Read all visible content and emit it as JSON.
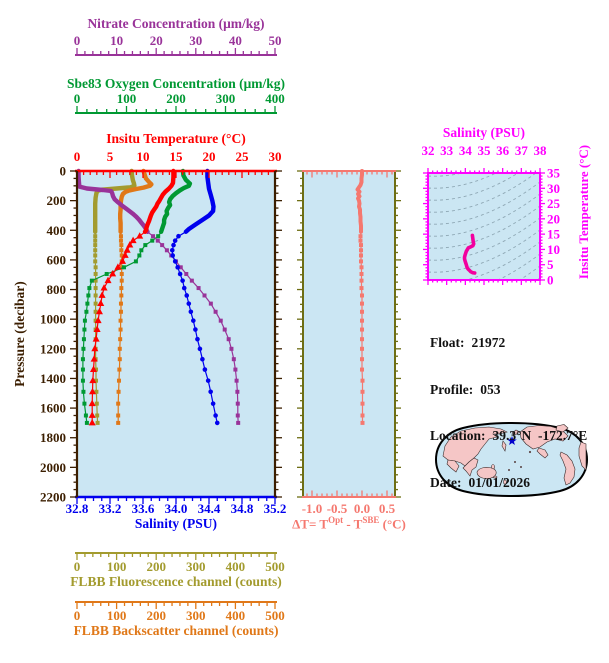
{
  "colors": {
    "background": "#ffffff",
    "panel_bg": "#cbe6f3",
    "contour": "#8fa8b5",
    "nitrate": "#993399",
    "oxygen": "#009933",
    "temperature": "#ff0000",
    "salinity": "#0000ee",
    "pressure": "#3b1e00",
    "fluorescence": "#a39b2e",
    "backscatter": "#e07818",
    "delta": "#f5786f",
    "delta_frame": "#6e6e14",
    "ts_axis": "#ff00ff",
    "ts_curve": "#f2009e",
    "map_land": "#f5c6c6",
    "map_sea": "#cbe6f3",
    "map_outline": "#000000",
    "map_star": "#0000cc",
    "info_text": "#111111"
  },
  "titles": {
    "nitrate": "Nitrate Concentration (μm/kg)",
    "oxygen": "Sbe83 Oxygen Concentration (μm/kg)",
    "temperature": "Insitu Temperature (°C)",
    "salinity": "Salinity (PSU)",
    "pressure": "Pressure (decibar)",
    "fluorescence": "FLBB Fluorescence channel (counts)",
    "backscatter": "FLBB Backscatter channel (counts)",
    "ts_salinity": "Salinity (PSU)",
    "ts_temperature": "Insitu Temperature (°C)",
    "delta_pre": "ΔT= T",
    "delta_sup1": "Opt",
    "delta_mid": " - T",
    "delta_sup2": "SBE",
    "delta_post": " (°C)"
  },
  "float_info": {
    "rows": [
      {
        "label": "Float:",
        "value": "21972"
      },
      {
        "label": "Profile:",
        "value": "053"
      },
      {
        "label": "Location:",
        "value": "39.3°N  -172.7°E"
      },
      {
        "label": "Date:",
        "value": "01/01/2026"
      }
    ]
  },
  "chart_data": {
    "type": "line",
    "axes": {
      "temperature": {
        "min": 0,
        "max": 30,
        "ticks": [
          0,
          5,
          10,
          15,
          20,
          25,
          30
        ],
        "minor_step": 1
      },
      "nitrate": {
        "min": 0,
        "max": 50,
        "ticks": [
          0,
          10,
          20,
          30,
          40,
          50
        ],
        "minor_step": 2
      },
      "oxygen": {
        "min": 0,
        "max": 400,
        "ticks": [
          0,
          100,
          200,
          300,
          400
        ],
        "minor_step": 20
      },
      "salinity": {
        "min": 32.8,
        "max": 35.2,
        "ticks": [
          32.8,
          33.2,
          33.6,
          34,
          34.4,
          34.8,
          35.2
        ],
        "tick_labels": [
          "32.8",
          "33.2",
          "33.6",
          "34.0",
          "34.4",
          "34.8",
          "35.2"
        ],
        "minor_step": 0.1
      },
      "fluorescence": {
        "min": 0,
        "max": 500,
        "ticks": [
          0,
          100,
          200,
          300,
          400,
          500
        ],
        "minor_step": 20
      },
      "backscatter": {
        "min": 0,
        "max": 500,
        "ticks": [
          0,
          100,
          200,
          300,
          400,
          500
        ],
        "minor_step": 20
      },
      "pressure": {
        "min": 0,
        "max": 2200,
        "ticks": [
          0,
          200,
          400,
          600,
          800,
          1000,
          1200,
          1400,
          1600,
          1800,
          2000,
          2200
        ],
        "minor_step": 50
      },
      "delta_t": {
        "min": -1.18,
        "max": 0.66,
        "ticks": [
          -1,
          -0.5,
          0,
          0.5
        ],
        "tick_labels": [
          "-1.0",
          "-0.5",
          "0.0",
          "0.5"
        ],
        "minor_step": 0.1
      },
      "ts_salinity": {
        "min": 32,
        "max": 38,
        "ticks": [
          32,
          33,
          34,
          35,
          36,
          37,
          38
        ],
        "minor_step": 0.25
      },
      "ts_temperature": {
        "min": 0,
        "max": 35,
        "ticks": [
          0,
          5,
          10,
          15,
          20,
          25,
          30,
          35
        ],
        "minor_step": 1
      }
    },
    "deep_pressures": [
      440,
      470,
      500,
      535,
      570,
      610,
      650,
      695,
      740,
      790,
      840,
      895,
      950,
      1010,
      1070,
      1135,
      1200,
      1270,
      1340,
      1415,
      1490,
      1570,
      1650,
      1700
    ],
    "series": {
      "fluorescence": {
        "marker": "square",
        "upper": [
          [
            0,
            138
          ],
          [
            30,
            139
          ],
          [
            60,
            141
          ],
          [
            85,
            144
          ],
          [
            100,
            145
          ],
          [
            110,
            135
          ],
          [
            118,
            100
          ],
          [
            126,
            62
          ],
          [
            134,
            52
          ],
          [
            150,
            49
          ],
          [
            180,
            47
          ],
          [
            220,
            46
          ],
          [
            260,
            46
          ],
          [
            300,
            46
          ],
          [
            340,
            46
          ],
          [
            380,
            46
          ],
          [
            410,
            46
          ]
        ],
        "deep": [
          46,
          46,
          46,
          46,
          46,
          46,
          47,
          47,
          47,
          47,
          47,
          47,
          47,
          47,
          47,
          47,
          47,
          47,
          48,
          48,
          49,
          50,
          51,
          52
        ]
      },
      "backscatter": {
        "marker": "square",
        "upper": [
          [
            0,
            168
          ],
          [
            25,
            171
          ],
          [
            50,
            174
          ],
          [
            75,
            182
          ],
          [
            90,
            188
          ],
          [
            100,
            184
          ],
          [
            112,
            168
          ],
          [
            122,
            148
          ],
          [
            132,
            131
          ],
          [
            142,
            122
          ],
          [
            155,
            116
          ],
          [
            175,
            113
          ],
          [
            200,
            111
          ],
          [
            230,
            110
          ],
          [
            260,
            110
          ],
          [
            290,
            109
          ],
          [
            320,
            109
          ],
          [
            350,
            110
          ],
          [
            380,
            110
          ],
          [
            410,
            110
          ]
        ],
        "deep": [
          111,
          111,
          112,
          112,
          113,
          113,
          113,
          113,
          113,
          112,
          112,
          111,
          111,
          110,
          110,
          109,
          108,
          108,
          107,
          106,
          105,
          104,
          104,
          104
        ]
      },
      "oxygen": {
        "marker": "square",
        "upper": [
          [
            0,
            214
          ],
          [
            30,
            215
          ],
          [
            60,
            220
          ],
          [
            85,
            228
          ],
          [
            100,
            226
          ],
          [
            115,
            216
          ],
          [
            130,
            208
          ],
          [
            150,
            200
          ],
          [
            170,
            193
          ],
          [
            190,
            188
          ],
          [
            210,
            186
          ],
          [
            230,
            188
          ],
          [
            250,
            184
          ],
          [
            270,
            181
          ],
          [
            290,
            182
          ],
          [
            310,
            178
          ],
          [
            330,
            176
          ],
          [
            350,
            176
          ],
          [
            370,
            174
          ],
          [
            390,
            172
          ],
          [
            410,
            170
          ]
        ],
        "deep": [
          164,
          152,
          138,
          130,
          126,
          119,
          95,
          60,
          30,
          25,
          23,
          21,
          19,
          16,
          15,
          14,
          13,
          12,
          12,
          12,
          13,
          15,
          18,
          20
        ]
      },
      "nitrate": {
        "marker": "square",
        "upper": [
          [
            0,
            0.4
          ],
          [
            40,
            0.4
          ],
          [
            80,
            0.5
          ],
          [
            105,
            0.6
          ],
          [
            118,
            2.5
          ],
          [
            128,
            6.5
          ],
          [
            135,
            8.6
          ],
          [
            150,
            8.9
          ],
          [
            170,
            9.1
          ],
          [
            190,
            9.5
          ],
          [
            210,
            10.3
          ],
          [
            230,
            11.2
          ],
          [
            250,
            12.2
          ],
          [
            270,
            13.2
          ],
          [
            290,
            14.2
          ],
          [
            310,
            15
          ],
          [
            330,
            15.7
          ],
          [
            350,
            16.3
          ],
          [
            370,
            16.9
          ],
          [
            390,
            17.4
          ],
          [
            410,
            17.8
          ]
        ],
        "deep": [
          19.2,
          20.4,
          21.5,
          22.7,
          23.8,
          25,
          26.2,
          27.6,
          29,
          30.7,
          32.2,
          33.8,
          35,
          36.3,
          37.3,
          38.3,
          39,
          39.6,
          40,
          40.3,
          40.5,
          40.6,
          40.6,
          40.7
        ]
      },
      "temperature": {
        "marker": "triangle",
        "upper": [
          [
            0,
            14.6
          ],
          [
            40,
            14.6
          ],
          [
            80,
            14.55
          ],
          [
            100,
            14.3
          ],
          [
            120,
            13.9
          ],
          [
            140,
            13.4
          ],
          [
            160,
            13
          ],
          [
            180,
            12.75
          ],
          [
            200,
            12.5
          ],
          [
            220,
            12.2
          ],
          [
            240,
            12
          ],
          [
            260,
            11.7
          ],
          [
            280,
            11.4
          ],
          [
            300,
            11.2
          ],
          [
            320,
            11.05
          ],
          [
            340,
            10.9
          ],
          [
            360,
            10.7
          ],
          [
            380,
            10.55
          ],
          [
            400,
            10.45
          ],
          [
            410,
            10.3
          ]
        ],
        "deep": [
          9.5,
          8.5,
          8,
          7.6,
          7.3,
          6.9,
          6.2,
          5.4,
          4.7,
          4.1,
          3.8,
          3.6,
          3.4,
          3.2,
          3.05,
          2.9,
          2.7,
          2.6,
          2.5,
          2.4,
          2.35,
          2.3,
          2.3,
          2.3
        ]
      },
      "salinity": {
        "marker": "circle",
        "upper": [
          [
            0,
            34.38
          ],
          [
            40,
            34.38
          ],
          [
            80,
            34.39
          ],
          [
            120,
            34.4
          ],
          [
            160,
            34.42
          ],
          [
            200,
            34.44
          ],
          [
            240,
            34.455
          ],
          [
            270,
            34.45
          ],
          [
            300,
            34.4
          ],
          [
            330,
            34.32
          ],
          [
            360,
            34.24
          ],
          [
            390,
            34.16
          ],
          [
            410,
            34.12
          ]
        ],
        "deep": [
          34.03,
          33.99,
          33.97,
          33.955,
          33.96,
          33.99,
          34.02,
          34.05,
          34.08,
          34.1,
          34.13,
          34.155,
          34.18,
          34.21,
          34.235,
          34.26,
          34.29,
          34.32,
          34.35,
          34.39,
          34.42,
          34.45,
          34.48,
          34.5
        ]
      },
      "delta_t": {
        "marker": "square",
        "upper": [
          [
            0,
            0
          ],
          [
            25,
            0
          ],
          [
            50,
            -0.01
          ],
          [
            75,
            -0.01
          ],
          [
            95,
            -0.03
          ],
          [
            110,
            -0.06
          ],
          [
            125,
            -0.09
          ],
          [
            140,
            -0.05
          ],
          [
            155,
            -0.08
          ],
          [
            170,
            -0.05
          ],
          [
            185,
            -0.08
          ],
          [
            200,
            -0.06
          ],
          [
            220,
            -0.05
          ],
          [
            240,
            -0.06
          ],
          [
            260,
            -0.04
          ],
          [
            285,
            -0.04
          ],
          [
            310,
            -0.03
          ],
          [
            340,
            -0.03
          ],
          [
            370,
            -0.02
          ],
          [
            410,
            -0.02
          ]
        ],
        "deep": [
          -0.03,
          -0.03,
          -0.02,
          -0.02,
          -0.02,
          -0.02,
          -0.01,
          -0.01,
          -0.01,
          -0.01,
          0,
          0,
          0,
          0,
          0,
          0,
          0,
          0,
          0,
          0.01,
          0.01,
          0.01,
          0.01,
          0.01
        ]
      }
    },
    "ts_curve": [
      [
        34.38,
        14.6
      ],
      [
        34.4,
        13.6
      ],
      [
        34.42,
        12.6
      ],
      [
        34.45,
        11.8
      ],
      [
        34.4,
        11.2
      ],
      [
        34.3,
        10.9
      ],
      [
        34.16,
        10.5
      ],
      [
        34.05,
        9.4
      ],
      [
        33.99,
        8.2
      ],
      [
        33.96,
        7.6
      ],
      [
        33.955,
        7.2
      ],
      [
        33.96,
        6.8
      ],
      [
        33.99,
        6.2
      ],
      [
        34.02,
        5.6
      ],
      [
        34.05,
        5
      ],
      [
        34.08,
        4.4
      ],
      [
        34.11,
        3.9
      ],
      [
        34.16,
        3.5
      ],
      [
        34.21,
        3.2
      ],
      [
        34.29,
        2.7
      ],
      [
        34.39,
        2.4
      ],
      [
        34.5,
        2.3
      ]
    ],
    "map": {
      "star_local": [
        77,
        19
      ]
    }
  }
}
